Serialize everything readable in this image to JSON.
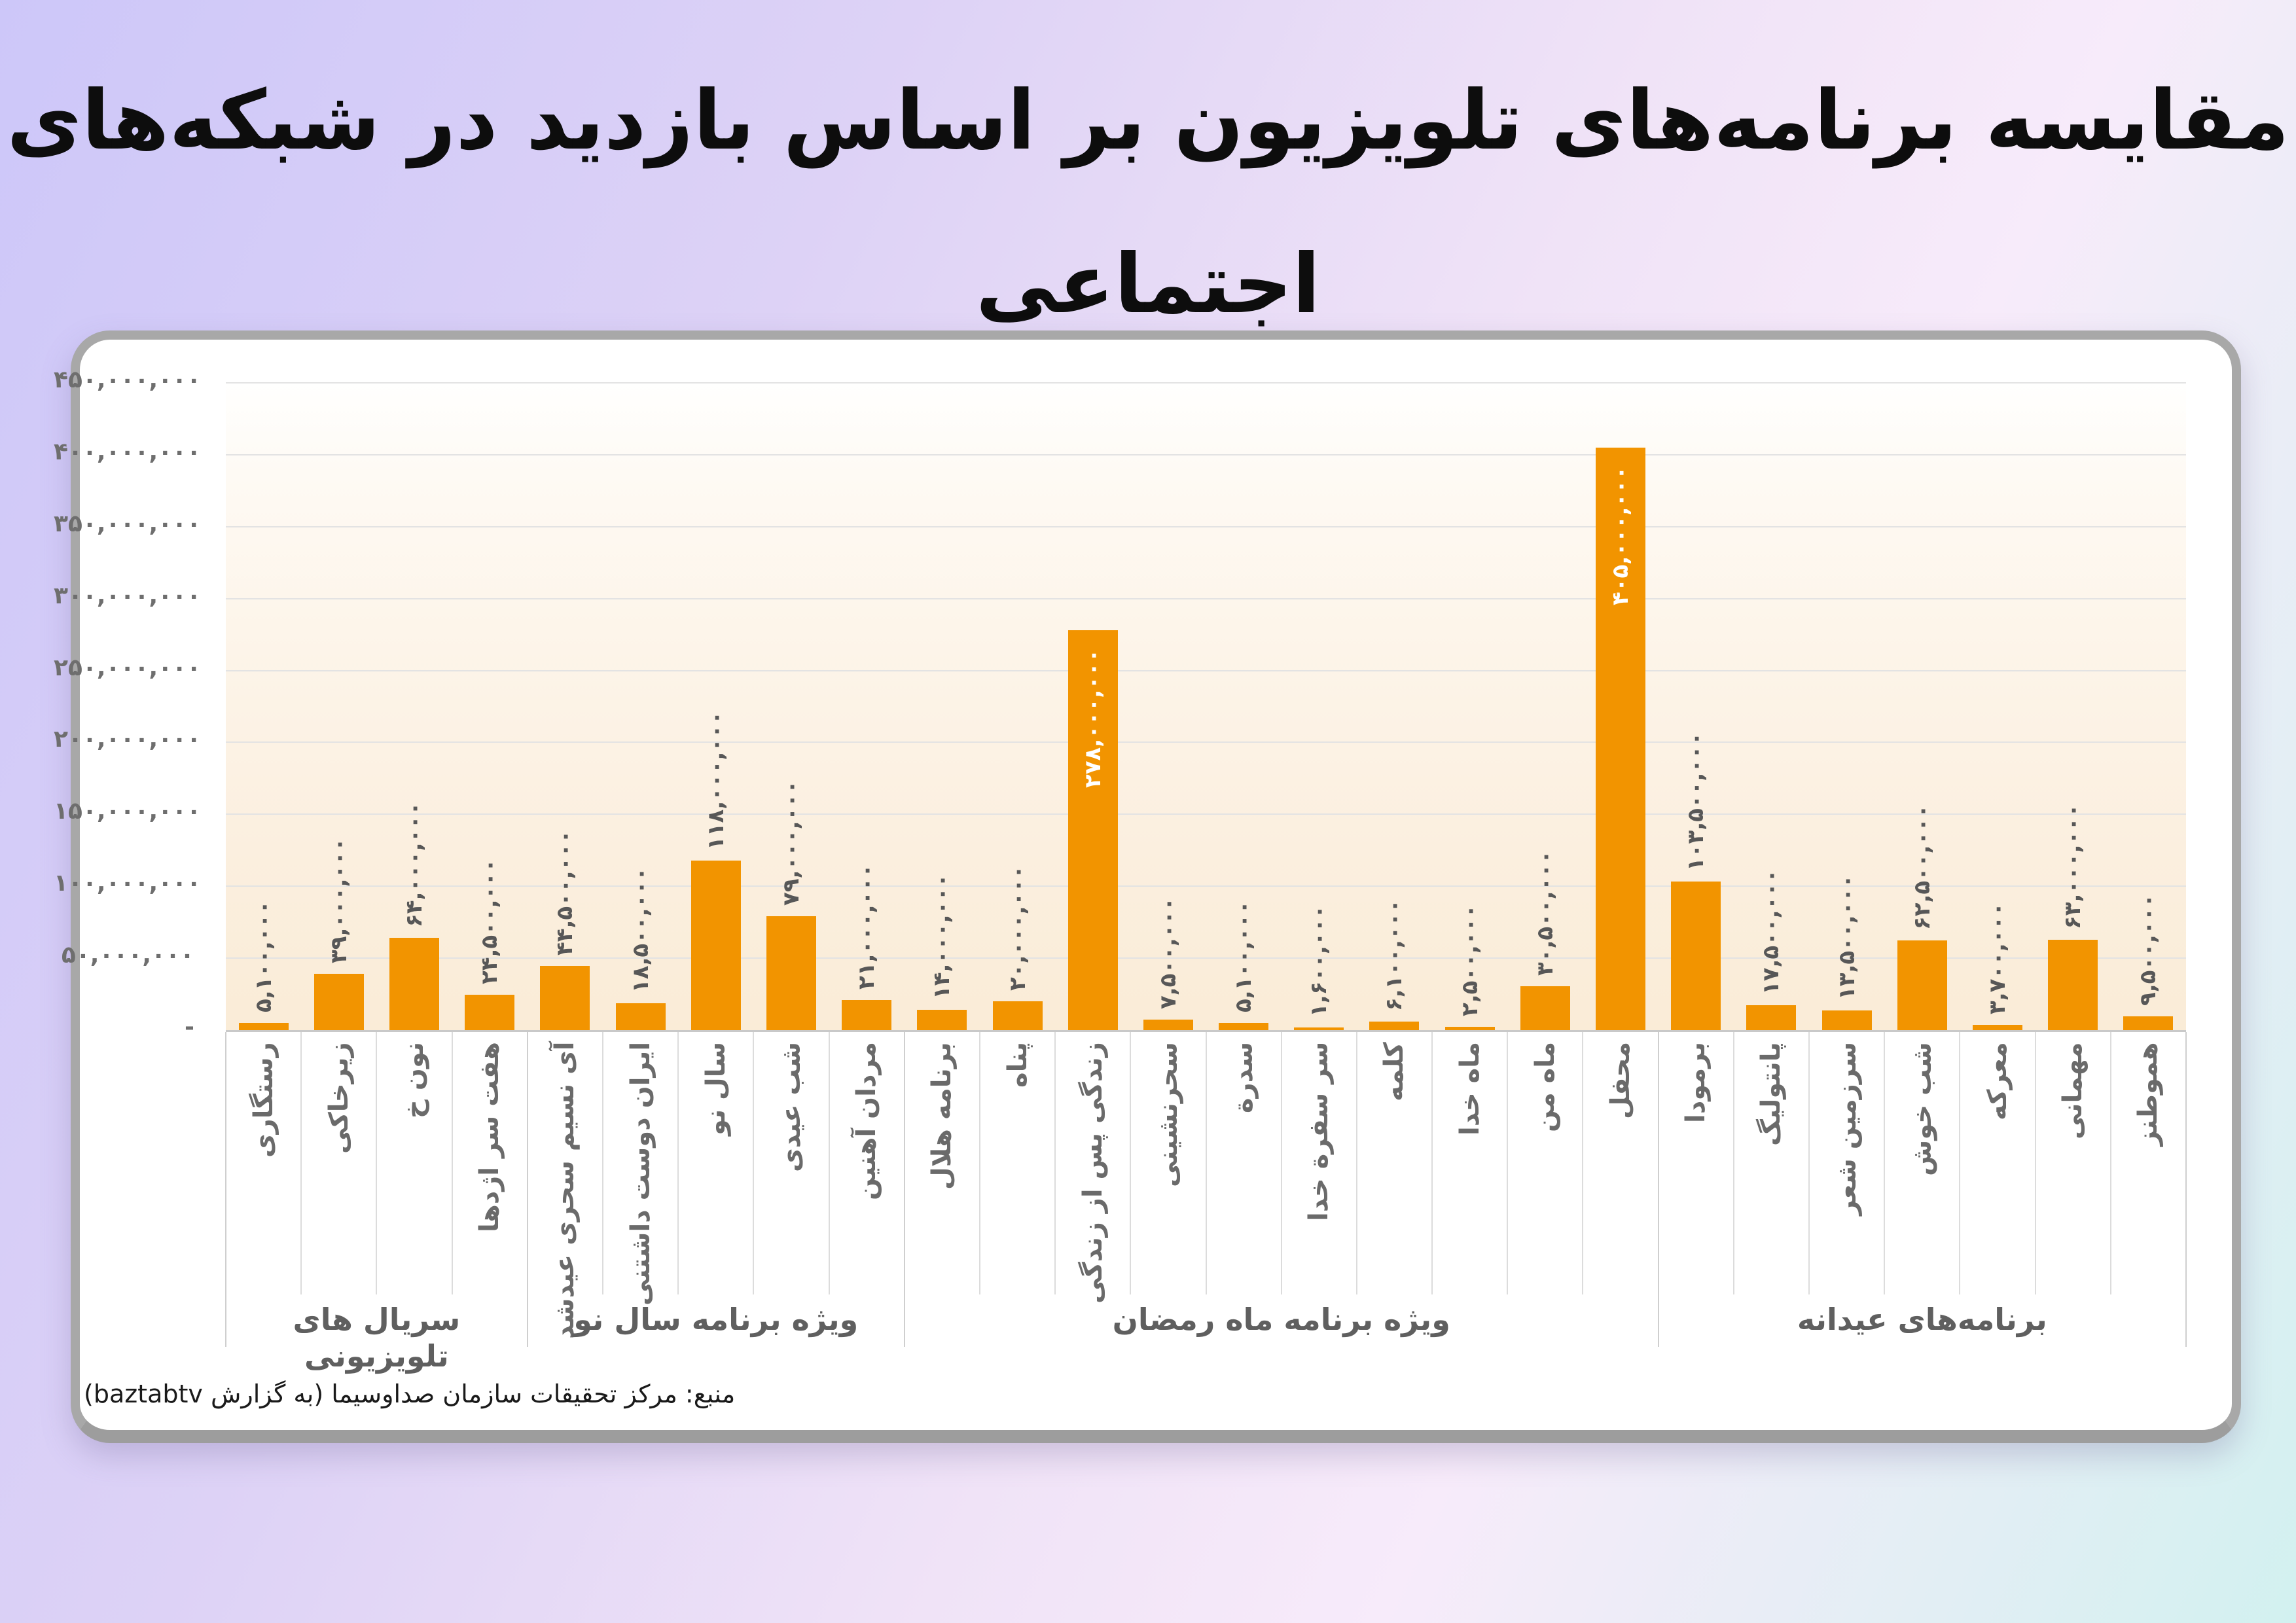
{
  "title": "مقایسه برنامه‌های تلویزیون بر اساس بازدید در شبکه‌های اجتماعی",
  "source": "منبع: مرکز تحقیقات سازمان صداوسیما (به گزارش baztabtv)",
  "colors": {
    "bar": "#F29400",
    "card_border": "#a8a8a8",
    "grid": "#e3e3e3",
    "value_label": "#575757",
    "inside_value_label": "#ffffff",
    "axis_text": "#6e6e6e",
    "background_top_left": "#cdc7f9",
    "background_bottom_left": "#f7e9fb",
    "background_bottom_right": "#d2f1f0",
    "plot_background_bottom": "#faecd7"
  },
  "chart_data": {
    "type": "bar",
    "title": "مقایسه برنامه‌های تلویزیون بر اساس بازدید در شبکه‌های اجتماعی",
    "xlabel": "",
    "ylabel": "",
    "ylim": [
      0,
      450000000
    ],
    "ytick_step": 50000000,
    "grid": true,
    "yticks": [
      "-",
      "۵۰,۰۰۰,۰۰۰",
      "۱۰۰,۰۰۰,۰۰۰",
      "۱۵۰,۰۰۰,۰۰۰",
      "۲۰۰,۰۰۰,۰۰۰",
      "۲۵۰,۰۰۰,۰۰۰",
      "۳۰۰,۰۰۰,۰۰۰",
      "۳۵۰,۰۰۰,۰۰۰",
      "۴۰۰,۰۰۰,۰۰۰",
      "۴۵۰,۰۰۰,۰۰۰"
    ],
    "categories": [
      "رستگاری",
      "زیرخاکی",
      "نون خ",
      "هفت سر اژدها",
      "آی نسیم سحری عیدشد",
      "ایران دوست داشتنی",
      "سال نو",
      "شب عیدی",
      "مردان آهنین",
      "برنامه هلال",
      "پناه",
      "زندگی پس از زندگی",
      "سحرنشینی",
      "سدرة",
      "سر سفرة خدا",
      "کلمه",
      "ماه خدا",
      "ماه من",
      "محفل",
      "برمودا",
      "پانتولیگ",
      "سرزمین شعر",
      "شب خوش",
      "معرکه",
      "مهمانی",
      "هموطنز"
    ],
    "values": [
      5100000,
      39000000,
      64000000,
      24500000,
      44500000,
      18500000,
      118000000,
      79000000,
      21000000,
      14000000,
      20000000,
      278000000,
      7500000,
      5100000,
      1600000,
      6100000,
      2500000,
      30500000,
      405000000,
      103500000,
      17500000,
      13500000,
      62500000,
      3700000,
      63000000,
      9500000
    ],
    "value_labels": [
      "۵,۱۰۰,۰۰۰",
      "۳۹,۰۰۰,۰۰۰",
      "۶۴,۰۰۰,۰۰۰",
      "۲۴,۵۰۰,۰۰۰",
      "۴۴,۵۰۰,۰۰۰",
      "۱۸,۵۰۰,۰۰۰",
      "۱۱۸,۰۰۰,۰۰۰",
      "۷۹,۰۰۰,۰۰۰",
      "۲۱,۰۰۰,۰۰۰",
      "۱۴,۰۰۰,۰۰۰",
      "۲۰,۰۰۰,۰۰۰",
      "۲۷۸,۰۰۰,۰۰۰",
      "۷,۵۰۰,۰۰۰",
      "۵,۱۰۰,۰۰۰",
      "۱,۶۰۰,۰۰۰",
      "۶,۱۰۰,۰۰۰",
      "۲,۵۰۰,۰۰۰",
      "۳۰,۵۰۰,۰۰۰",
      "۴۰۵,۰۰۰,۰۰۰",
      "۱۰۳,۵۰۰,۰۰۰",
      "۱۷,۵۰۰,۰۰۰",
      "۱۳,۵۰۰,۰۰۰",
      "۶۲,۵۰۰,۰۰۰",
      "۳,۷۰۰,۰۰۰",
      "۶۳,۰۰۰,۰۰۰",
      "۹,۵۰۰,۰۰۰"
    ],
    "inside_label_indices": [
      11,
      18
    ],
    "legend_position": "none",
    "groups": [
      {
        "label": "سریال های تلویزیونی",
        "from": 0,
        "to": 4
      },
      {
        "label": "ویژه برنامه سال نو",
        "from": 4,
        "to": 9
      },
      {
        "label": "ویژه برنامه ماه رمضان",
        "from": 9,
        "to": 19
      },
      {
        "label": "برنامه‌های عیدانه",
        "from": 19,
        "to": 26
      }
    ]
  }
}
